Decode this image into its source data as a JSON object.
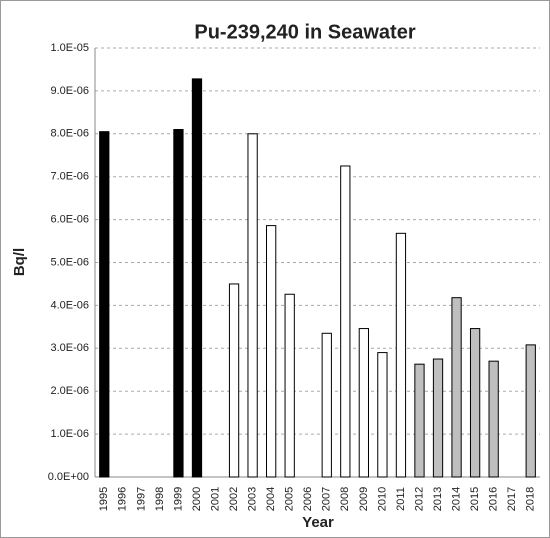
{
  "chart_data": {
    "type": "bar",
    "title": "Pu-239,240 in Seawater",
    "x_label": "Year",
    "y_label": "Bq/l",
    "categories": [
      "1995",
      "1996",
      "1997",
      "1998",
      "1999",
      "2000",
      "2001",
      "2002",
      "2003",
      "2004",
      "2005",
      "2006",
      "2007",
      "2008",
      "2009",
      "2010",
      "2011",
      "2012",
      "2013",
      "2014",
      "2015",
      "2016",
      "2017",
      "2018"
    ],
    "values": [
      8.05e-06,
      null,
      null,
      null,
      8.1e-06,
      9.28e-06,
      null,
      4.5e-06,
      8e-06,
      5.86e-06,
      4.26e-06,
      null,
      3.35e-06,
      7.25e-06,
      3.46e-06,
      2.9e-06,
      5.68e-06,
      2.63e-06,
      2.75e-06,
      4.18e-06,
      3.46e-06,
      2.7e-06,
      null,
      3.08e-06
    ],
    "colors": [
      "#000000",
      null,
      null,
      null,
      "#000000",
      "#000000",
      null,
      "#ffffff",
      "#ffffff",
      "#ffffff",
      "#ffffff",
      null,
      "#ffffff",
      "#ffffff",
      "#ffffff",
      "#ffffff",
      "#ffffff",
      "#bfbfbf",
      "#bfbfbf",
      "#bfbfbf",
      "#bfbfbf",
      "#bfbfbf",
      null,
      "#bfbfbf"
    ],
    "ylim": [
      0,
      1e-05
    ],
    "yticks": [
      {
        "value": 0,
        "label": "0.0E+00"
      },
      {
        "value": 1e-06,
        "label": "1.0E-06"
      },
      {
        "value": 2e-06,
        "label": "2.0E-06"
      },
      {
        "value": 3e-06,
        "label": "3.0E-06"
      },
      {
        "value": 4e-06,
        "label": "4.0E-06"
      },
      {
        "value": 5e-06,
        "label": "5.0E-06"
      },
      {
        "value": 6e-06,
        "label": "6.0E-06"
      },
      {
        "value": 7e-06,
        "label": "7.0E-06"
      },
      {
        "value": 8e-06,
        "label": "8.0E-06"
      },
      {
        "value": 9e-06,
        "label": "9.0E-06"
      },
      {
        "value": 1e-05,
        "label": "1.0E-05"
      }
    ],
    "grid": true
  }
}
